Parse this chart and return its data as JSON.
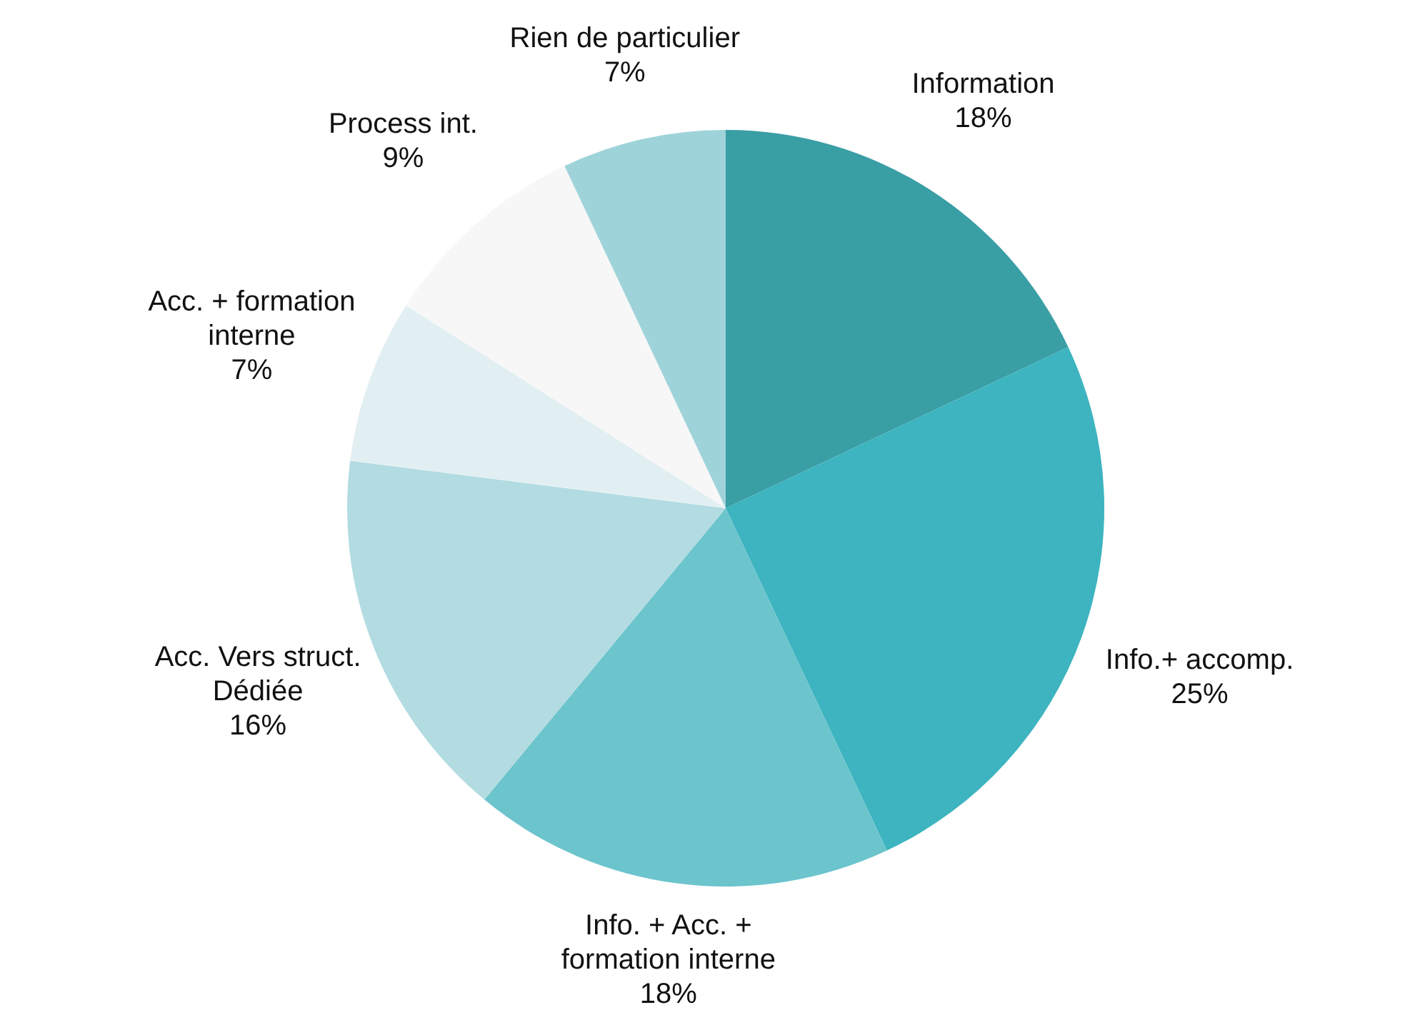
{
  "chart_data": {
    "type": "pie",
    "categories": [
      "Information",
      "Info.+ accomp.",
      "Info. + Acc. + formation interne",
      "Acc. Vers struct. Dédiée",
      "Acc. + formation interne",
      "Process int.",
      "Rien de particulier"
    ],
    "values": [
      18,
      25,
      18,
      16,
      7,
      9,
      7
    ],
    "value_labels": [
      "18%",
      "25%",
      "18%",
      "16%",
      "7%",
      "9%",
      "7%"
    ],
    "colors": [
      "#3a9ea5",
      "#3db4bf",
      "#6cc4cd",
      "#b2dce1",
      "#e2eff2",
      "#f7f7f7",
      "#9fd3da"
    ]
  }
}
